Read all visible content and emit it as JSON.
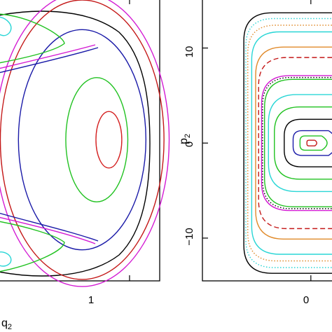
{
  "chart_data": [
    {
      "type": "line",
      "panel": "left",
      "title": "",
      "xlabel": "q",
      "xlabel_sub": "2",
      "ylabel": "",
      "xlim": [
        -0.52,
        1.35
      ],
      "ylim": [
        -1.0,
        1.0
      ],
      "x_ticks": [
        {
          "value": 1,
          "label": "1"
        }
      ],
      "grid": false,
      "boundary_color": "#000000",
      "series": [
        {
          "color": "#d42020",
          "values": [
            [
              0.76,
              0.0,
              0.2,
              0.15
            ]
          ]
        },
        {
          "color": "#21c221",
          "values": [
            [
              0.62,
              0.0,
              0.44,
              0.36
            ]
          ]
        },
        {
          "color": "#1a1aa8",
          "values": [
            [
              0.45,
              0.0,
              0.78,
              0.74
            ]
          ]
        },
        {
          "color": "#c41818",
          "values": [
            [
              0.45,
              0.0,
              0.99,
              0.95
            ]
          ]
        },
        {
          "color": "#d31ad3",
          "values": [
            [
              0.45,
              0.0,
              1.04,
              1.01
            ]
          ]
        }
      ]
    },
    {
      "type": "line",
      "panel": "right",
      "title": "",
      "xlabel": "",
      "ylabel": "p",
      "ylabel_sub": "2",
      "xlim": [
        -1.1,
        0.25
      ],
      "ylim": [
        -14.5,
        15.2
      ],
      "x_ticks": [
        {
          "value": 0,
          "label": "0"
        }
      ],
      "y_ticks": [
        {
          "value": 10,
          "label": "10"
        },
        {
          "value": 0,
          "label": "0"
        },
        {
          "value": -10,
          "label": "−10"
        }
      ],
      "grid": false,
      "series": [
        {
          "color": "#000000",
          "half_width": 0.68,
          "half_height": 13.7,
          "dash": "solid"
        },
        {
          "color": "#2ad6d6",
          "half_width": 0.66,
          "half_height": 13.1,
          "dash": "dotted"
        },
        {
          "color": "#e08a2a",
          "half_width": 0.64,
          "half_height": 12.4,
          "dash": "dotted"
        },
        {
          "color": "#2ad6d6",
          "half_width": 0.6,
          "half_height": 11.7,
          "dash": "solid"
        },
        {
          "color": "#e08a2a",
          "half_width": 0.56,
          "half_height": 10.1,
          "dash": "solid"
        },
        {
          "color": "#c41818",
          "half_width": 0.53,
          "half_height": 9.0,
          "dash": "dashed"
        },
        {
          "color": "#d31ad3",
          "half_width": 0.5,
          "half_height": 7.1,
          "dash": "solid"
        },
        {
          "color": "#000000",
          "half_width": 0.49,
          "half_height": 6.9,
          "dash": "dotted"
        },
        {
          "color": "#21c221",
          "half_width": 0.47,
          "half_height": 6.7,
          "dash": "solid"
        },
        {
          "color": "#2ad6d6",
          "half_width": 0.43,
          "half_height": 5.1,
          "dash": "solid"
        },
        {
          "color": "#21c221",
          "half_width": 0.37,
          "half_height": 3.8,
          "dash": "solid"
        },
        {
          "color": "#000000",
          "half_width": 0.27,
          "half_height": 2.5,
          "dash": "solid"
        },
        {
          "color": "#1a1aa8",
          "half_width": 0.18,
          "half_height": 1.3,
          "dash": "solid"
        },
        {
          "color": "#21c221",
          "half_width": 0.11,
          "half_height": 0.75,
          "dash": "solid"
        },
        {
          "color": "#c41818",
          "half_width": 0.04,
          "half_height": 0.3,
          "dash": "solid"
        }
      ]
    }
  ]
}
